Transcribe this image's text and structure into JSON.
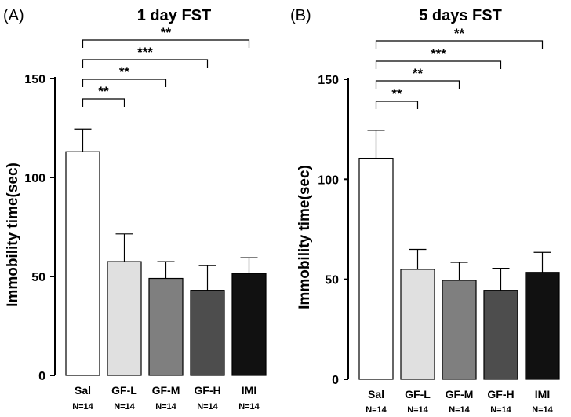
{
  "chart_data": [
    {
      "type": "bar",
      "panel_label": "(A)",
      "title": "1 day FST",
      "xlabel": "",
      "ylabel": "Immobility time(sec)",
      "ylim": [
        0,
        150
      ],
      "yticks": [
        0,
        50,
        100,
        150
      ],
      "categories": [
        "Sal",
        "GF-L",
        "GF-M",
        "GF-H",
        "IMI"
      ],
      "n_labels": [
        "N=14",
        "N=14",
        "N=14",
        "N=14",
        "N=14"
      ],
      "values": [
        113,
        57.5,
        49,
        43,
        51.5
      ],
      "errors": [
        11.5,
        14,
        8.5,
        12.5,
        8
      ],
      "colors": [
        "#ffffff",
        "#e0e0e0",
        "#7f7f7f",
        "#4d4d4d",
        "#111111"
      ],
      "significance": [
        {
          "from": "Sal",
          "to": "GF-L",
          "label": "**"
        },
        {
          "from": "Sal",
          "to": "GF-M",
          "label": "**"
        },
        {
          "from": "Sal",
          "to": "GF-H",
          "label": "***"
        },
        {
          "from": "Sal",
          "to": "IMI",
          "label": "**"
        }
      ]
    },
    {
      "type": "bar",
      "panel_label": "(B)",
      "title": "5 days FST",
      "xlabel": "",
      "ylabel": "Immobility time(sec)",
      "ylim": [
        0,
        150
      ],
      "yticks": [
        0,
        50,
        100,
        150
      ],
      "categories": [
        "Sal",
        "GF-L",
        "GF-M",
        "GF-H",
        "IMI"
      ],
      "n_labels": [
        "N=14",
        "N=14",
        "N=14",
        "N=14",
        "N=14"
      ],
      "values": [
        110.5,
        55,
        49.5,
        44.5,
        53.5
      ],
      "errors": [
        14,
        10,
        9,
        11,
        10
      ],
      "colors": [
        "#ffffff",
        "#e0e0e0",
        "#7f7f7f",
        "#4d4d4d",
        "#111111"
      ],
      "significance": [
        {
          "from": "Sal",
          "to": "GF-L",
          "label": "**"
        },
        {
          "from": "Sal",
          "to": "GF-M",
          "label": "**"
        },
        {
          "from": "Sal",
          "to": "GF-H",
          "label": "***"
        },
        {
          "from": "Sal",
          "to": "IMI",
          "label": "**"
        }
      ]
    }
  ]
}
